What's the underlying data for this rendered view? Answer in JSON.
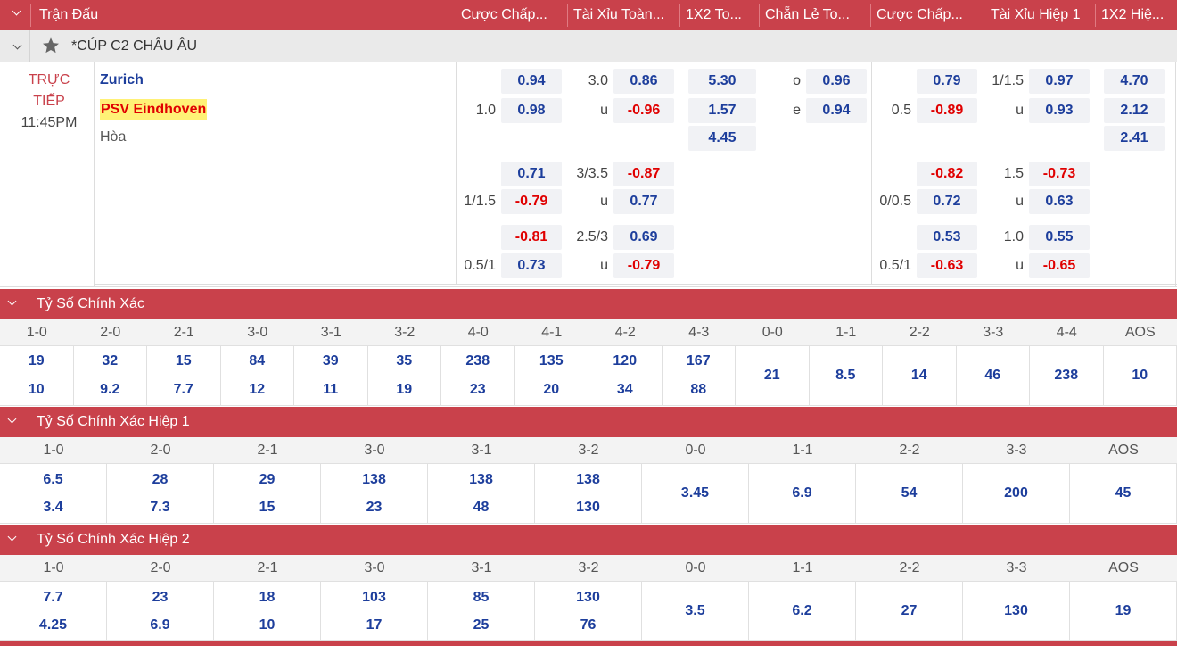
{
  "header": {
    "columns": [
      "Trận Đấu",
      "Cược Chấp...",
      "Tài Xỉu Toàn...",
      "1X2 To...",
      "Chẵn Lẻ To...",
      "Cược Chấp...",
      "Tài Xỉu Hiệp 1",
      "1X2 Hiệ..."
    ]
  },
  "league": {
    "name": "*CÚP C2 CHÂU ÂU"
  },
  "match": {
    "status_line1": "TRỰC",
    "status_line2": "TIẾP",
    "time": "11:45PM",
    "home": "Zurich",
    "away": "PSV Eindhoven",
    "draw": "Hòa",
    "ft_handicap": [
      {
        "line": "",
        "home": "0.94",
        "away_line": "1.0",
        "away": "0.98"
      },
      {
        "line": "",
        "home": "0.71",
        "away_line": "1/1.5",
        "away": "-0.79"
      },
      {
        "line": "",
        "home": "-0.81",
        "away_line": "0.5/1",
        "away": "0.73"
      }
    ],
    "ft_ou": [
      {
        "line": "3.0",
        "over": "0.86",
        "u": "u",
        "under": "-0.96"
      },
      {
        "line": "3/3.5",
        "over": "-0.87",
        "u": "u",
        "under": "0.77"
      },
      {
        "line": "2.5/3",
        "over": "0.69",
        "u": "u",
        "under": "-0.79"
      }
    ],
    "ft_1x2": [
      "5.30",
      "1.57",
      "4.45"
    ],
    "oe": {
      "o": "o",
      "o_val": "0.96",
      "e": "e",
      "e_val": "0.94"
    },
    "h1_handicap": [
      {
        "home": "0.79",
        "away_line": "0.5",
        "away": "-0.89"
      },
      {
        "home": "-0.82",
        "away_line": "0/0.5",
        "away": "0.72"
      },
      {
        "home": "0.53",
        "away_line": "0.5/1",
        "away": "-0.63"
      }
    ],
    "h1_ou": [
      {
        "line": "1/1.5",
        "over": "0.97",
        "u": "u",
        "under": "0.93"
      },
      {
        "line": "1.5",
        "over": "-0.73",
        "u": "u",
        "under": "0.63"
      },
      {
        "line": "1.0",
        "over": "0.55",
        "u": "u",
        "under": "-0.65"
      }
    ],
    "h1_1x2": [
      "4.70",
      "2.12",
      "2.41"
    ]
  },
  "correct_score": {
    "title": "Tỷ Số Chính Xác",
    "scores": [
      "1-0",
      "2-0",
      "2-1",
      "3-0",
      "3-1",
      "3-2",
      "4-0",
      "4-1",
      "4-2",
      "4-3",
      "0-0",
      "1-1",
      "2-2",
      "3-3",
      "4-4",
      "AOS"
    ],
    "home": [
      "19",
      "32",
      "15",
      "84",
      "39",
      "35",
      "238",
      "135",
      "120",
      "167"
    ],
    "away": [
      "10",
      "9.2",
      "7.7",
      "12",
      "11",
      "19",
      "23",
      "20",
      "34",
      "88"
    ],
    "single": [
      "21",
      "8.5",
      "14",
      "46",
      "238",
      "10"
    ]
  },
  "correct_score_h1": {
    "title": "Tỷ Số Chính Xác Hiệp 1",
    "scores": [
      "1-0",
      "2-0",
      "2-1",
      "3-0",
      "3-1",
      "3-2",
      "0-0",
      "1-1",
      "2-2",
      "3-3",
      "AOS"
    ],
    "home": [
      "6.5",
      "28",
      "29",
      "138",
      "138",
      "138"
    ],
    "away": [
      "3.4",
      "7.3",
      "15",
      "23",
      "48",
      "130"
    ],
    "single": [
      "3.45",
      "6.9",
      "54",
      "200",
      "45"
    ]
  },
  "correct_score_h2": {
    "title": "Tỷ Số Chính Xác Hiệp 2",
    "scores": [
      "1-0",
      "2-0",
      "2-1",
      "3-0",
      "3-1",
      "3-2",
      "0-0",
      "1-1",
      "2-2",
      "3-3",
      "AOS"
    ],
    "home": [
      "7.7",
      "23",
      "18",
      "103",
      "85",
      "130"
    ],
    "away": [
      "4.25",
      "6.9",
      "10",
      "17",
      "25",
      "76"
    ],
    "single": [
      "3.5",
      "6.2",
      "27",
      "130",
      "19"
    ]
  },
  "colors": {
    "accent": "#c9414b",
    "odd_positive": "#1d3e9c",
    "odd_negative": "#e00000",
    "highlight": "#fff176"
  }
}
